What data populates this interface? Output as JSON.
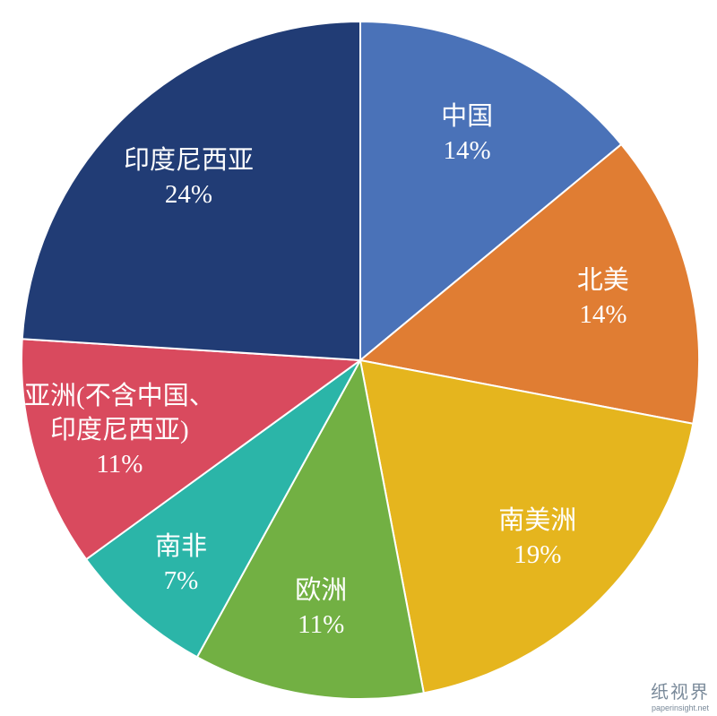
{
  "chart_data": {
    "type": "pie",
    "categories": [
      "中国",
      "北美",
      "南美洲",
      "欧洲",
      "南非",
      "亚洲(不含中国、印度尼西亚)",
      "印度尼西亚"
    ],
    "values": [
      14,
      14,
      19,
      11,
      7,
      11,
      24
    ],
    "value_labels": [
      "14%",
      "14%",
      "19%",
      "11%",
      "7%",
      "11%",
      "24%"
    ],
    "colors": [
      "#4a72b8",
      "#e07d33",
      "#e5b51e",
      "#72b043",
      "#2bb5a8",
      "#d94a5e",
      "#213c75"
    ]
  },
  "watermark": {
    "text": "纸视界",
    "url": "paperinsight.net"
  }
}
